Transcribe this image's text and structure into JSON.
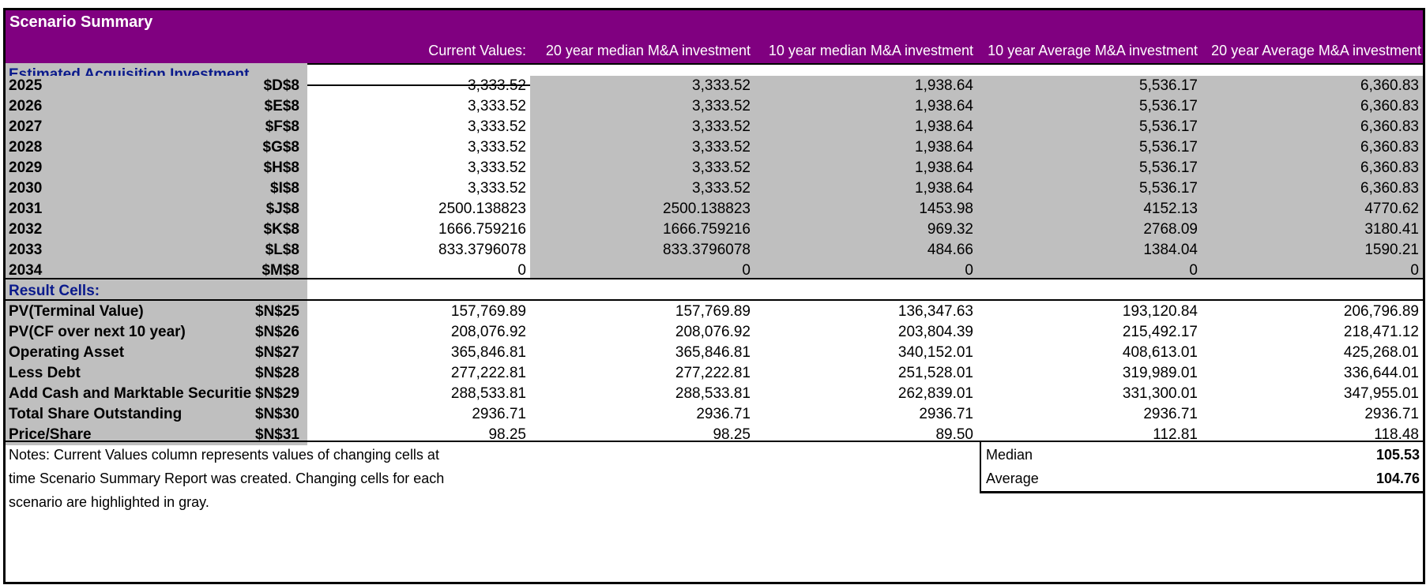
{
  "title": "Scenario Summary",
  "headers": [
    "Current Values:",
    "20 year median M&A investment",
    "10 year median M&A investment",
    "10 year Average M&A investment",
    "20 year Average M&A investment"
  ],
  "section1": "Estimated Acquisition Investment",
  "section2": "Result Cells:",
  "investment_rows": [
    {
      "label": "2025",
      "ref": "$D$8",
      "values": [
        "3,333.52",
        "3,333.52",
        "1,938.64",
        "5,536.17",
        "6,360.83"
      ]
    },
    {
      "label": "2026",
      "ref": "$E$8",
      "values": [
        "3,333.52",
        "3,333.52",
        "1,938.64",
        "5,536.17",
        "6,360.83"
      ]
    },
    {
      "label": "2027",
      "ref": "$F$8",
      "values": [
        "3,333.52",
        "3,333.52",
        "1,938.64",
        "5,536.17",
        "6,360.83"
      ]
    },
    {
      "label": "2028",
      "ref": "$G$8",
      "values": [
        "3,333.52",
        "3,333.52",
        "1,938.64",
        "5,536.17",
        "6,360.83"
      ]
    },
    {
      "label": "2029",
      "ref": "$H$8",
      "values": [
        "3,333.52",
        "3,333.52",
        "1,938.64",
        "5,536.17",
        "6,360.83"
      ]
    },
    {
      "label": "2030",
      "ref": "$I$8",
      "values": [
        "3,333.52",
        "3,333.52",
        "1,938.64",
        "5,536.17",
        "6,360.83"
      ]
    },
    {
      "label": "2031",
      "ref": "$J$8",
      "values": [
        "2500.138823",
        "2500.138823",
        "1453.98",
        "4152.13",
        "4770.62"
      ]
    },
    {
      "label": "2032",
      "ref": "$K$8",
      "values": [
        "1666.759216",
        "1666.759216",
        "969.32",
        "2768.09",
        "3180.41"
      ]
    },
    {
      "label": "2033",
      "ref": "$L$8",
      "values": [
        "833.3796078",
        "833.3796078",
        "484.66",
        "1384.04",
        "1590.21"
      ]
    },
    {
      "label": "2034",
      "ref": "$M$8",
      "values": [
        "0",
        "0",
        "0",
        "0",
        "0"
      ]
    }
  ],
  "result_rows": [
    {
      "label": "PV(Terminal Value)",
      "ref": "$N$25",
      "values": [
        "157,769.89",
        "157,769.89",
        "136,347.63",
        "193,120.84",
        "206,796.89"
      ]
    },
    {
      "label": "PV(CF over next 10 year)",
      "ref": "$N$26",
      "values": [
        "208,076.92",
        "208,076.92",
        "203,804.39",
        "215,492.17",
        "218,471.12"
      ]
    },
    {
      "label": "Operating Asset",
      "ref": "$N$27",
      "values": [
        "365,846.81",
        "365,846.81",
        "340,152.01",
        "408,613.01",
        "425,268.01"
      ]
    },
    {
      "label": "Less Debt",
      "ref": "$N$28",
      "values": [
        "277,222.81",
        "277,222.81",
        "251,528.01",
        "319,989.01",
        "336,644.01"
      ]
    },
    {
      "label": "Add Cash and Marktable Securitie",
      "ref": "$N$29",
      "values": [
        "288,533.81",
        "288,533.81",
        "262,839.01",
        "331,300.01",
        "347,955.01"
      ]
    },
    {
      "label": "Total Share Outstanding",
      "ref": "$N$30",
      "values": [
        "2936.71",
        "2936.71",
        "2936.71",
        "2936.71",
        "2936.71"
      ]
    },
    {
      "label": "Price/Share",
      "ref": "$N$31",
      "values": [
        "98.25",
        "98.25",
        "89.50",
        "112.81",
        "118.48"
      ]
    }
  ],
  "notes": [
    "Notes:  Current Values column represents values of changing cells at",
    "time Scenario Summary Report was created.  Changing cells for each",
    "scenario are highlighted in gray."
  ],
  "stats": [
    {
      "label": "Median",
      "value": "105.53"
    },
    {
      "label": "Average",
      "value": "104.76"
    }
  ],
  "colors": {
    "title_band": "#800080",
    "highlight_gray": "#bfbfbf",
    "section_text": "#0a1a8c"
  }
}
